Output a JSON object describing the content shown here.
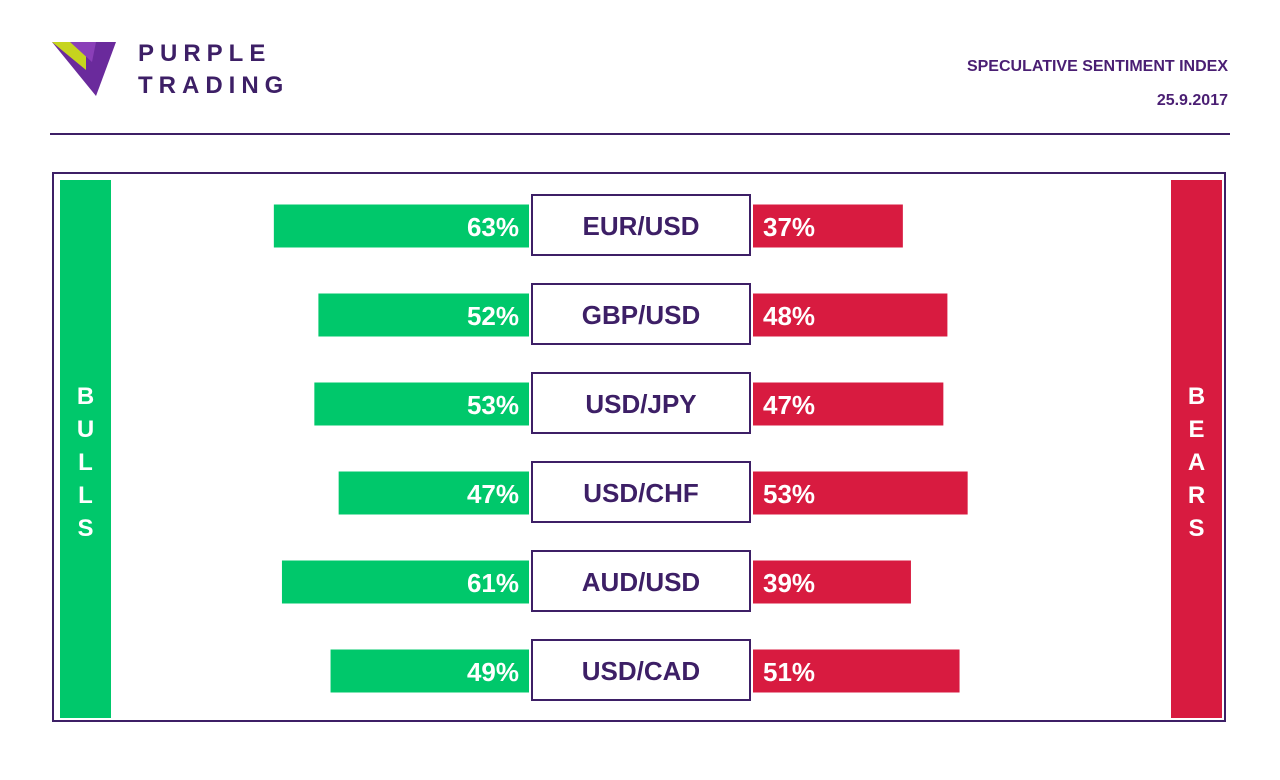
{
  "brand": {
    "line1": "PURPLE",
    "line2": "TRADING",
    "logo_icon": "purple-triangle-logo-icon"
  },
  "header": {
    "title": "SPECULATIVE SENTIMENT INDEX",
    "date": "25.9.2017"
  },
  "sides": {
    "bulls": [
      "B",
      "U",
      "L",
      "L",
      "S"
    ],
    "bears": [
      "B",
      "E",
      "A",
      "R",
      "S"
    ]
  },
  "colors": {
    "bulls": "#00c86b",
    "bears": "#d81b40",
    "accent": "#3d1f66"
  },
  "chart_data": {
    "type": "bar",
    "categories": [
      "EUR/USD",
      "GBP/USD",
      "USD/JPY",
      "USD/CHF",
      "AUD/USD",
      "USD/CAD"
    ],
    "series": [
      {
        "name": "BULLS",
        "values": [
          63,
          52,
          53,
          47,
          61,
          49
        ]
      },
      {
        "name": "BEARS",
        "values": [
          37,
          48,
          47,
          53,
          39,
          51
        ]
      }
    ],
    "value_labels": {
      "bulls": [
        "63%",
        "52%",
        "53%",
        "47%",
        "61%",
        "49%"
      ],
      "bears": [
        "37%",
        "48%",
        "47%",
        "53%",
        "39%",
        "51%"
      ]
    },
    "ylim": [
      0,
      100
    ]
  }
}
